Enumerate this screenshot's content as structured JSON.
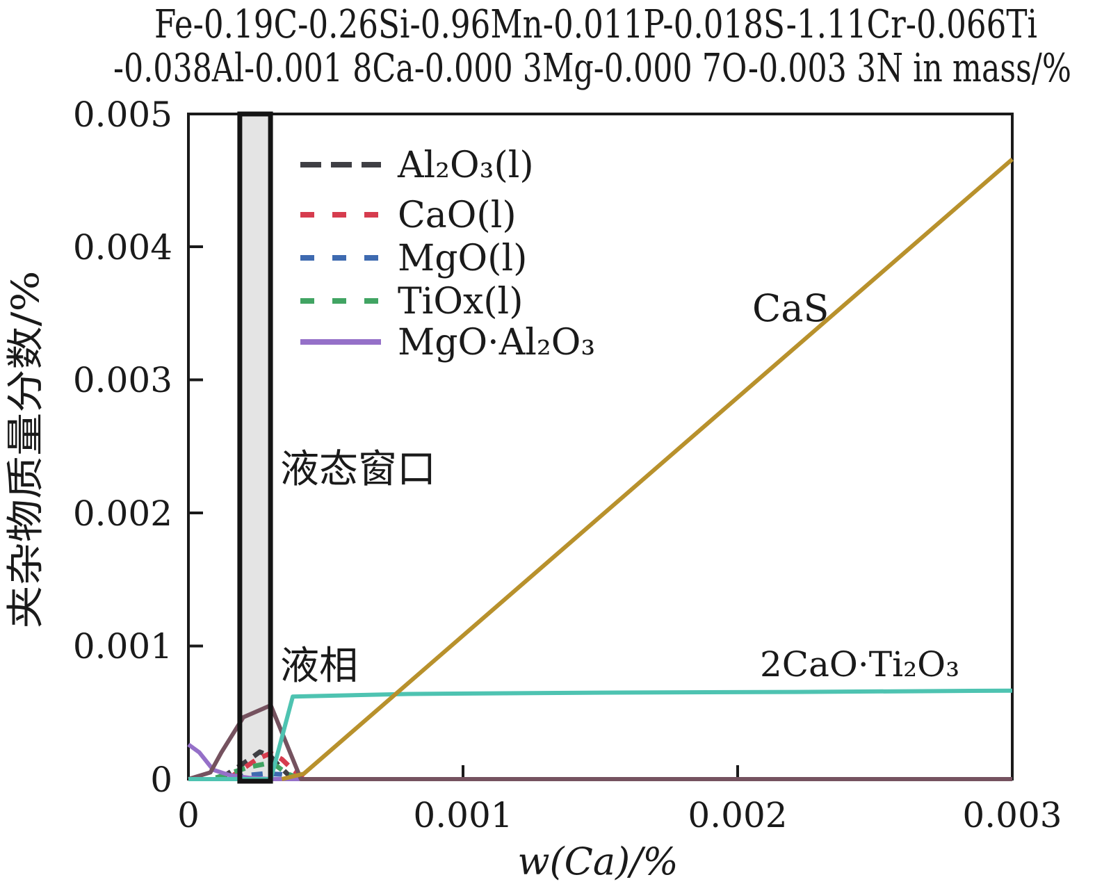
{
  "title": {
    "line1": "Fe-0.19C-0.26Si-0.96Mn-0.011P-0.018S-1.11Cr-0.066Ti",
    "line2": "-0.038Al-0.001 8Ca-0.000 3Mg-0.000 7O-0.003 3N in mass/%"
  },
  "axes": {
    "xlabel": "w(Ca)/%",
    "ylabel": "夹杂物质量分数/%",
    "xtick_labels": [
      "0",
      "0.001",
      "0.002",
      "0.003"
    ],
    "ytick_labels": [
      "0",
      "0.001",
      "0.002",
      "0.003",
      "0.004",
      "0.005"
    ]
  },
  "legend": {
    "items": [
      {
        "label": "Al₂O₃(l)"
      },
      {
        "label": "CaO(l)"
      },
      {
        "label": "MgO(l)"
      },
      {
        "label": "TiOx(l)"
      },
      {
        "label": "MgO·Al₂O₃"
      }
    ]
  },
  "annotations": {
    "cas": "CaS",
    "dicalcium_titanate": "2CaO·Ti₂O₃",
    "liquid_window": "液态窗口",
    "liquid_phase": "液相"
  },
  "chart_data": {
    "type": "line",
    "title": "Fe-0.19C-0.26Si-0.96Mn-0.011P-0.018S-1.11Cr-0.066Ti-0.038Al-0.001 8Ca-0.000 3Mg-0.000 7O-0.003 3N in mass/%",
    "xlabel": "w(Ca)/%",
    "ylabel": "夹杂物质量分数/%",
    "xlim": [
      0,
      0.003
    ],
    "ylim": [
      0,
      0.005
    ],
    "xticks": [
      0,
      0.001,
      0.002,
      0.003
    ],
    "yticks": [
      0,
      0.001,
      0.002,
      0.003,
      0.004,
      0.005
    ],
    "grid": false,
    "legend_position": "upper-left-inside",
    "liquid_window": {
      "x_range": [
        0.000187,
        0.000299
      ],
      "fill": "#e4e4e4",
      "border": "#141414",
      "label": "液态窗口"
    },
    "series": [
      {
        "name": "Al2O3(l)",
        "style": "dashed",
        "color": "#3f3f44",
        "points": [
          [
            0.00012,
            1e-05
          ],
          [
            0.00018,
            9e-05
          ],
          [
            0.00023,
            0.00016
          ],
          [
            0.00026,
            0.000205
          ],
          [
            0.0003,
            0.00017
          ],
          [
            0.00033,
            0.0001
          ],
          [
            0.00037,
            2e-05
          ]
        ]
      },
      {
        "name": "CaO(l)",
        "style": "dashed",
        "color": "#d63c4e",
        "points": [
          [
            0.00015,
            1e-05
          ],
          [
            0.0002,
            8e-05
          ],
          [
            0.00025,
            0.00015
          ],
          [
            0.0003,
            0.000195
          ],
          [
            0.00034,
            0.00015
          ],
          [
            0.00038,
            7e-05
          ],
          [
            0.00042,
            1e-05
          ]
        ]
      },
      {
        "name": "MgO(l)",
        "style": "dashed",
        "color": "#3e6ab0",
        "points": [
          [
            0.00016,
            1e-05
          ],
          [
            0.00022,
            3e-05
          ],
          [
            0.00028,
            4.2e-05
          ],
          [
            0.00034,
            3.5e-05
          ],
          [
            0.00039,
            2e-05
          ]
        ]
      },
      {
        "name": "TiOx(l)",
        "style": "dashed",
        "color": "#41a463",
        "points": [
          [
            0.0001,
            1e-05
          ],
          [
            0.00016,
            5e-05
          ],
          [
            0.00022,
            9e-05
          ],
          [
            0.00028,
            0.000115
          ],
          [
            0.00032,
            0.0001
          ],
          [
            0.00036,
            4e-05
          ],
          [
            0.0004,
            1e-05
          ]
        ]
      },
      {
        "name": "MgO·Al2O3",
        "style": "solid",
        "color": "#9570c8",
        "points": [
          [
            0,
            0.00026
          ],
          [
            4e-05,
            0.0002
          ],
          [
            9e-05,
            7e-05
          ],
          [
            0.00015,
            3e-05
          ],
          [
            0.00022,
            1e-05
          ],
          [
            0.0003,
            0
          ],
          [
            0.00042,
            0
          ]
        ]
      },
      {
        "name": "liquid-phase (液相)",
        "style": "solid",
        "color": "#75525f",
        "points": [
          [
            0,
            0
          ],
          [
            8e-05,
            5e-05
          ],
          [
            0.00012,
            0.0002
          ],
          [
            0.0002,
            0.000465
          ],
          [
            0.0003,
            0.000555
          ],
          [
            0.00041,
            0
          ],
          [
            0.003,
            0
          ]
        ]
      },
      {
        "name": "2CaO·Ti2O3",
        "style": "solid",
        "color": "#4ec3b1",
        "points": [
          [
            0,
            0
          ],
          [
            0.0003,
            0
          ],
          [
            0.00038,
            0.00062
          ],
          [
            0.0008,
            0.00064
          ],
          [
            0.0015,
            0.00065
          ],
          [
            0.0022,
            0.000655
          ],
          [
            0.003,
            0.000665
          ]
        ]
      },
      {
        "name": "CaS",
        "style": "solid",
        "color": "#b8912c",
        "points": [
          [
            0.00034,
            0
          ],
          [
            0.00042,
            4e-05
          ],
          [
            0.003,
            0.00466
          ]
        ]
      }
    ]
  }
}
